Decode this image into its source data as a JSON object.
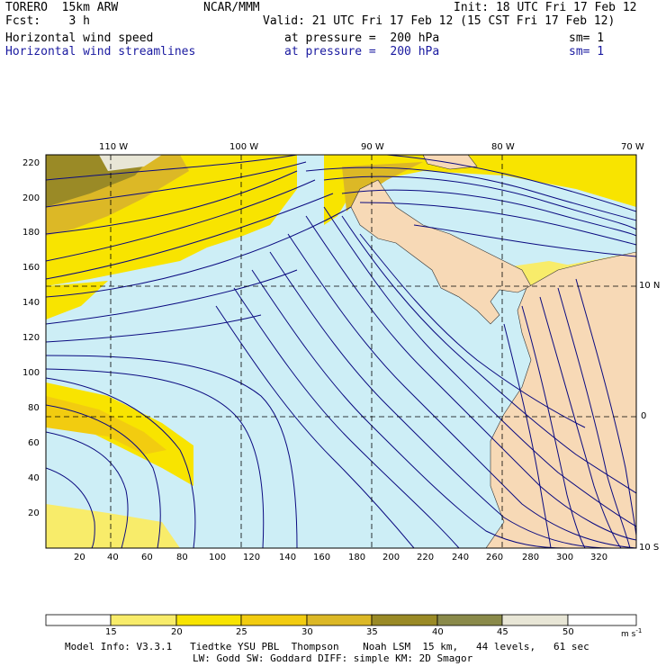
{
  "header": {
    "model": "TORERO  15km ARW",
    "org": "NCAR/MMM",
    "init": "Init: 18 UTC Fri 17 Feb 12",
    "fcst": "Fcst:    3 h",
    "valid": "Valid: 21 UTC Fri 17 Feb 12 (15 CST Fri 17 Feb 12)",
    "field1_name": "Horizontal wind speed",
    "field1_level": "at pressure =  200 hPa",
    "field1_sm": "sm= 1",
    "field2_name": "Horizontal wind streamlines",
    "field2_level": "at pressure =  200 hPa",
    "field2_sm": "sm= 1"
  },
  "map": {
    "lon_labels": [
      "110 W",
      "100 W",
      "90 W",
      "80 W",
      "70 W"
    ],
    "lat_labels": [
      "10 N",
      "0",
      "10 S"
    ],
    "x_ticks": [
      "20",
      "40",
      "60",
      "80",
      "100",
      "120",
      "140",
      "160",
      "180",
      "200",
      "220",
      "240",
      "260",
      "280",
      "300",
      "320"
    ],
    "y_ticks": [
      "220",
      "200",
      "180",
      "160",
      "140",
      "120",
      "100",
      "80",
      "60",
      "40",
      "20"
    ],
    "colors": {
      "ocean_light": "#cdeef6",
      "land": "#f7d9b6",
      "streamline": "#0a0a80"
    }
  },
  "colorbar": {
    "labels": [
      "15",
      "20",
      "25",
      "30",
      "35",
      "40",
      "45",
      "50"
    ],
    "unit": "m s",
    "unit_exp": "-1",
    "colors": [
      "#ffffff",
      "#f8ec6a",
      "#f8e400",
      "#f2cc10",
      "#dcb826",
      "#9a8a26",
      "#8a8a4a",
      "#b4b48a",
      "#e8e6d6",
      "#ffffff"
    ]
  },
  "footer": {
    "line1": "Model Info: V3.3.1   Tiedtke YSU PBL  Thompson    Noah LSM  15 km,   44 levels,   61 sec",
    "line2": "LW: Godd SW: Goddard DIFF: simple KM: 2D Smagor"
  }
}
